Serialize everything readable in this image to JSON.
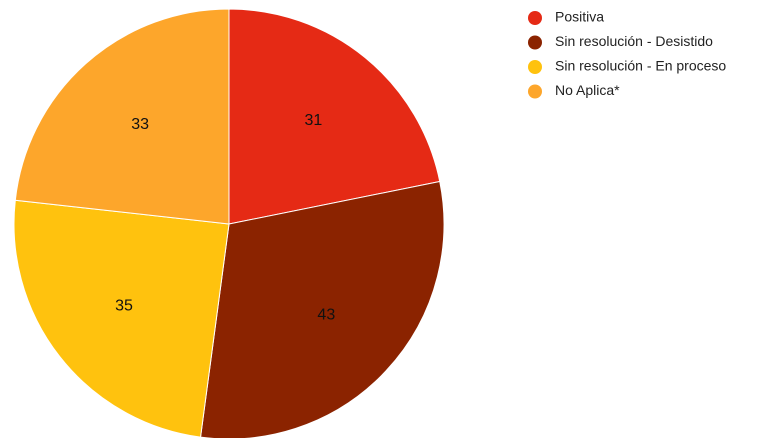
{
  "chart_data": {
    "type": "pie",
    "categories": [
      "Positiva",
      "Sin resolución - Desistido",
      "Sin resolución - En proceso",
      "No Aplica*"
    ],
    "values": [
      31,
      43,
      35,
      33
    ],
    "colors": [
      "#e52a15",
      "#8b2300",
      "#ffc20e",
      "#fda62b"
    ],
    "data_labels": [
      "31",
      "43",
      "35",
      "33"
    ],
    "start_angle": "12 o'clock",
    "direction": "clockwise",
    "legend_position": "top-right"
  }
}
